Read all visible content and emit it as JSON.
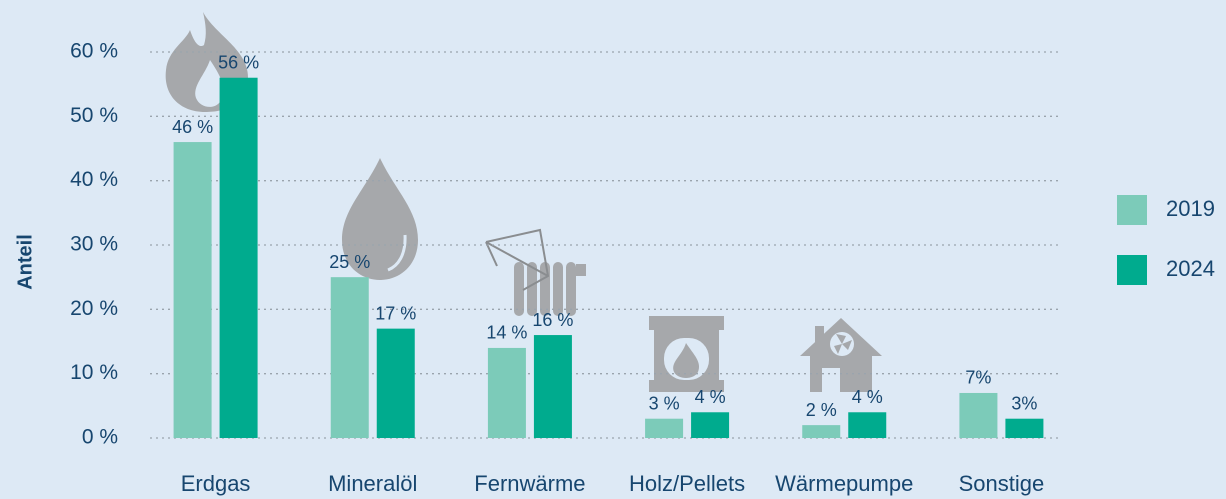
{
  "chart_data": {
    "type": "bar",
    "y_label": "Anteil",
    "categories": [
      "Erdgas",
      "Mineralöl",
      "Fernwärme",
      "Holz/Pellets",
      "Wärmepumpe",
      "Sonstige"
    ],
    "series": [
      {
        "name": "2019",
        "color": "#7ccbb9",
        "values": [
          46,
          25,
          14,
          3,
          2,
          7
        ],
        "value_labels": [
          "46 %",
          "25 %",
          "14 %",
          "3 %",
          "2 %",
          "7%"
        ]
      },
      {
        "name": "2024",
        "color": "#00ab8e",
        "values": [
          56,
          17,
          16,
          4,
          4,
          3
        ],
        "value_labels": [
          "56 %",
          "17 %",
          "16 %",
          "4 %",
          "4 %",
          "3%"
        ]
      }
    ],
    "ylim": [
      0,
      60
    ],
    "yticks": [
      {
        "value": 0,
        "label": "0 %"
      },
      {
        "value": 10,
        "label": "10 %"
      },
      {
        "value": 20,
        "label": "20 %"
      },
      {
        "value": 30,
        "label": "30 %"
      },
      {
        "value": 40,
        "label": "40 %"
      },
      {
        "value": 50,
        "label": "50 %"
      },
      {
        "value": 60,
        "label": "60 %"
      }
    ],
    "grid": true,
    "legend": "right"
  }
}
